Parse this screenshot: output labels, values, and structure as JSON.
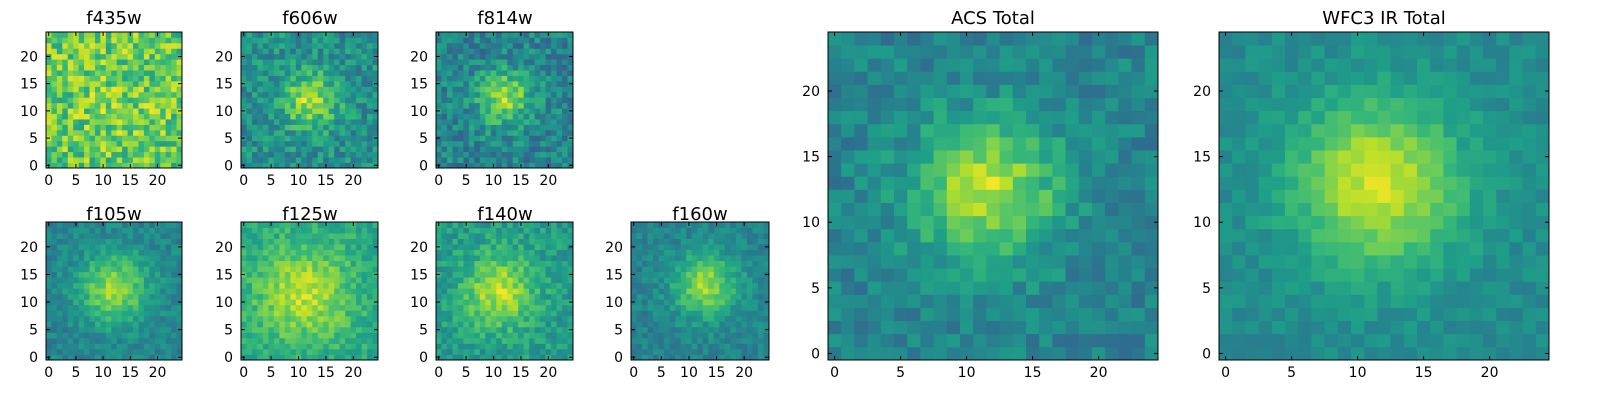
{
  "chart_data": [
    {
      "type": "heatmap",
      "title": "f435w",
      "xticks": [
        0,
        5,
        10,
        15,
        20
      ],
      "yticks": [
        0,
        5,
        10,
        15,
        20
      ],
      "xlim": [
        -0.5,
        24.5
      ],
      "ylim": [
        -0.5,
        24.5
      ],
      "size": 25,
      "colormap": "viridis",
      "source_peak": [
        12,
        12
      ],
      "source_width": 6,
      "source_strength": 0.05,
      "noise": 0.4,
      "base": 0.75,
      "seed": 11
    },
    {
      "type": "heatmap",
      "title": "f606w",
      "xticks": [
        0,
        5,
        10,
        15,
        20
      ],
      "yticks": [
        0,
        5,
        10,
        15,
        20
      ],
      "xlim": [
        -0.5,
        24.5
      ],
      "ylim": [
        -0.5,
        24.5
      ],
      "size": 25,
      "colormap": "viridis",
      "source_peak": [
        12,
        12
      ],
      "source_width": 3.5,
      "source_strength": 0.38,
      "noise": 0.3,
      "base": 0.5,
      "seed": 23
    },
    {
      "type": "heatmap",
      "title": "f814w",
      "xticks": [
        0,
        5,
        10,
        15,
        20
      ],
      "yticks": [
        0,
        5,
        10,
        15,
        20
      ],
      "xlim": [
        -0.5,
        24.5
      ],
      "ylim": [
        -0.5,
        24.5
      ],
      "size": 25,
      "colormap": "viridis",
      "source_peak": [
        12,
        12.5
      ],
      "source_width": 3.5,
      "source_strength": 0.4,
      "noise": 0.3,
      "base": 0.45,
      "seed": 37
    },
    {
      "type": "heatmap",
      "title": "f105w",
      "xticks": [
        0,
        5,
        10,
        15,
        20
      ],
      "yticks": [
        0,
        5,
        10,
        15,
        20
      ],
      "xlim": [
        -0.5,
        24.5
      ],
      "ylim": [
        -0.5,
        24.5
      ],
      "size": 25,
      "colormap": "viridis",
      "source_peak": [
        12,
        12.5
      ],
      "source_width": 4.5,
      "source_strength": 0.4,
      "noise": 0.18,
      "base": 0.45,
      "seed": 41
    },
    {
      "type": "heatmap",
      "title": "f125w",
      "xticks": [
        0,
        5,
        10,
        15,
        20
      ],
      "yticks": [
        0,
        5,
        10,
        15,
        20
      ],
      "xlim": [
        -0.5,
        24.5
      ],
      "ylim": [
        -0.5,
        24.5
      ],
      "size": 25,
      "colormap": "viridis",
      "source_peak": [
        11,
        11.5
      ],
      "source_width": 6,
      "source_strength": 0.3,
      "noise": 0.2,
      "base": 0.6,
      "seed": 53
    },
    {
      "type": "heatmap",
      "title": "f140w",
      "xticks": [
        0,
        5,
        10,
        15,
        20
      ],
      "yticks": [
        0,
        5,
        10,
        15,
        20
      ],
      "xlim": [
        -0.5,
        24.5
      ],
      "ylim": [
        -0.5,
        24.5
      ],
      "size": 25,
      "colormap": "viridis",
      "source_peak": [
        11,
        12
      ],
      "source_width": 4.5,
      "source_strength": 0.35,
      "noise": 0.22,
      "base": 0.55,
      "seed": 67
    },
    {
      "type": "heatmap",
      "title": "f160w",
      "xticks": [
        0,
        5,
        10,
        15,
        20
      ],
      "yticks": [
        0,
        5,
        10,
        15,
        20
      ],
      "xlim": [
        -0.5,
        24.5
      ],
      "ylim": [
        -0.5,
        24.5
      ],
      "size": 25,
      "colormap": "viridis",
      "source_peak": [
        13,
        13
      ],
      "source_width": 4,
      "source_strength": 0.4,
      "noise": 0.18,
      "base": 0.45,
      "seed": 79
    },
    {
      "type": "heatmap",
      "title": "ACS Total",
      "xticks": [
        0,
        5,
        10,
        15,
        20
      ],
      "yticks": [
        0,
        5,
        10,
        15,
        20
      ],
      "xlim": [
        -0.5,
        24.5
      ],
      "ylim": [
        -0.5,
        24.5
      ],
      "size": 25,
      "colormap": "viridis",
      "source_peak": [
        11.5,
        12.5
      ],
      "source_width": 3.8,
      "source_strength": 0.45,
      "noise": 0.2,
      "base": 0.45,
      "seed": 83
    },
    {
      "type": "heatmap",
      "title": "WFC3 IR Total",
      "xticks": [
        0,
        5,
        10,
        15,
        20
      ],
      "yticks": [
        0,
        5,
        10,
        15,
        20
      ],
      "xlim": [
        -0.5,
        24.5
      ],
      "ylim": [
        -0.5,
        24.5
      ],
      "size": 25,
      "colormap": "viridis",
      "source_peak": [
        11.5,
        13
      ],
      "source_width": 4.5,
      "source_strength": 0.45,
      "noise": 0.12,
      "base": 0.48,
      "seed": 97
    }
  ]
}
